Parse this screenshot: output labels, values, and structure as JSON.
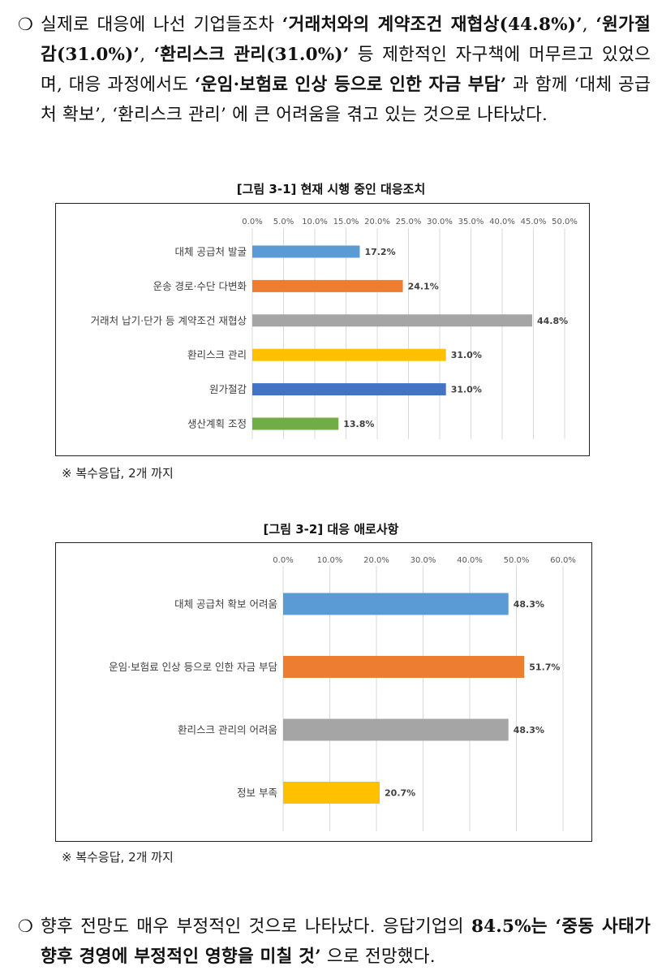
{
  "para1": {
    "bullet": "❍",
    "t1": "실제로 대응에 나선 기업들조차 ",
    "b1": "‘거래처와의 계약조건 재협상(44.8%)’",
    "t2": ", ",
    "b2": "‘원가절감(31.0%)’",
    "t3": ", ",
    "b3": "‘환리스크 관리(31.0%)’",
    "t4": " 등 제한적인 자구책에 머무르고 있었으며, 대응 과정에서도 ",
    "b4": "‘운임·보험료 인상 등으로 인한 자금 부담’",
    "t5": " 과 함께 ‘대체 공급처 확보’, ‘환리스크 관리’ 에 큰 어려움을 겪고 있는 것으로 나타났다."
  },
  "figure1": {
    "title": "[그림 3-1] 현재 시행 중인 대응조치",
    "note": "※ 복수응답, 2개 까지"
  },
  "figure2": {
    "title": "[그림 3-2] 대응 애로사항",
    "note": "※ 복수응답, 2개 까지"
  },
  "para2": {
    "bullet": "❍",
    "t1": "향후 전망도 매우 부정적인 것으로 나타났다. 응답기업의 ",
    "b1": "84.5%는 ‘중동 사태가 향후 경영에 부정적인 영향을 미칠 것’",
    "t2": " 으로 전망했다."
  },
  "chart_data": [
    {
      "type": "bar",
      "orientation": "horizontal",
      "title": "[그림 3-1] 현재 시행 중인 대응조치",
      "categories": [
        "대체 공급처 발굴",
        "운송 경로·수단 다변화",
        "거래처 납기·단가 등 계약조건 재협상",
        "환리스크 관리",
        "원가절감",
        "생산계획 조정"
      ],
      "values": [
        17.2,
        24.1,
        44.8,
        31.0,
        31.0,
        13.8
      ],
      "value_labels": [
        "17.2%",
        "24.1%",
        "44.8%",
        "31.0%",
        "31.0%",
        "13.8%"
      ],
      "colors": [
        "#5b9bd5",
        "#ed7d31",
        "#a5a5a5",
        "#ffc000",
        "#4472c4",
        "#70ad47"
      ],
      "xlim": [
        0,
        50
      ],
      "x_ticks": [
        "0.0%",
        "5.0%",
        "10.0%",
        "15.0%",
        "20.0%",
        "25.0%",
        "30.0%",
        "35.0%",
        "40.0%",
        "45.0%",
        "50.0%"
      ],
      "grid": true
    },
    {
      "type": "bar",
      "orientation": "horizontal",
      "title": "[그림 3-2] 대응 애로사항",
      "categories": [
        "대체 공급처 확보 어려움",
        "운임·보험료 인상 등으로 인한 자금 부담",
        "환리스크 관리의 어려움",
        "정보 부족"
      ],
      "values": [
        48.3,
        51.7,
        48.3,
        20.7
      ],
      "value_labels": [
        "48.3%",
        "51.7%",
        "48.3%",
        "20.7%"
      ],
      "colors": [
        "#5b9bd5",
        "#ed7d31",
        "#a5a5a5",
        "#ffc000"
      ],
      "xlim": [
        0,
        60
      ],
      "x_ticks": [
        "0.0%",
        "10.0%",
        "20.0%",
        "30.0%",
        "40.0%",
        "50.0%",
        "60.0%"
      ],
      "grid": true
    }
  ]
}
